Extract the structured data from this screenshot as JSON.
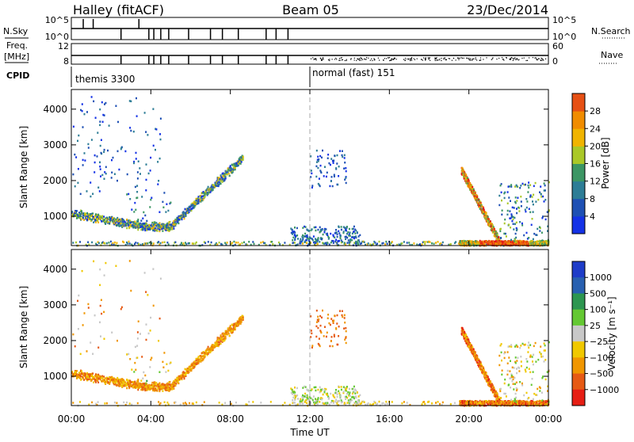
{
  "header": {
    "station": "Halley (fitACF)",
    "beam": "Beam 05",
    "date": "23/Dec/2014"
  },
  "top_panels": {
    "nsky_label": "N.Sky",
    "nsearch_label": "N.Search",
    "nsky_ticks": [
      "10^5",
      "10^0"
    ],
    "nsearch_ticks": [
      "10^5",
      "10^0"
    ],
    "freq_label_1": "Freq.",
    "freq_label_2": "[MHz]",
    "freq_ticks": [
      "12",
      "8"
    ],
    "nave_label": "Nave",
    "nave_ticks": [
      "60",
      "0"
    ],
    "cpid_label": "CPID",
    "cpid_modes": [
      {
        "name": "themis 3300",
        "start_hour": 0
      },
      {
        "name": "normal (fast) 151",
        "start_hour": 12
      }
    ]
  },
  "colors": {
    "power_scale": [
      "#1432e6",
      "#1e50b4",
      "#2d7d96",
      "#3c9664",
      "#aac828",
      "#f0b400",
      "#f08c00",
      "#e65014",
      "#e61414"
    ],
    "velocity_scale": [
      "#1e3cc8",
      "#2860b0",
      "#2d9650",
      "#64c832",
      "#c8c8c8",
      "#f0c800",
      "#f09600",
      "#e65a14",
      "#e61e14"
    ]
  },
  "chart_data": [
    {
      "type": "heatmap",
      "ylabel": "Slant Range [km]",
      "xlabel": "",
      "xlim": [
        0,
        24
      ],
      "ylim": [
        180,
        4550
      ],
      "y_ticks": [
        1000,
        2000,
        3000,
        4000
      ],
      "colorbar": {
        "label": "Power [dB]",
        "tick_labels": [
          "4",
          "8",
          "12",
          "16",
          "20",
          "24",
          "28"
        ],
        "range": [
          0,
          32
        ]
      },
      "features": [
        {
          "name": "near-range band",
          "t0": 0.0,
          "t1": 24.0,
          "r": "200-300",
          "value": "8-20"
        },
        {
          "name": "morning arc",
          "t0": 0.0,
          "t1": 8.5,
          "r": "1100 -> 700 -> 2500",
          "value": "4-20"
        },
        {
          "name": "evening streak",
          "t0": 19.6,
          "t1": 21.4,
          "r": "2300 -> 300",
          "value": "12-28"
        },
        {
          "name": "strong near-range",
          "t0": 20.0,
          "t1": 23.0,
          "r": "200-320",
          "value": "24-32"
        }
      ]
    },
    {
      "type": "heatmap",
      "ylabel": "Slant Range [km]",
      "xlabel": "Time UT",
      "x_tick_labels": [
        "00:00",
        "04:00",
        "08:00",
        "12:00",
        "16:00",
        "20:00",
        "00:00"
      ],
      "xlim": [
        0,
        24
      ],
      "ylim": [
        180,
        4550
      ],
      "y_ticks": [
        1000,
        2000,
        3000,
        4000
      ],
      "colorbar": {
        "label": "Velocity [m s⁻¹]",
        "tick_labels": [
          "1000",
          "500",
          "100",
          "25",
          "−25",
          "−100",
          "−500",
          "−1000"
        ]
      },
      "features": [
        {
          "name": "morning arc",
          "t0": 0.0,
          "t1": 8.5,
          "r": "1100 -> 700 -> 2500",
          "value": "-25 to -500"
        },
        {
          "name": "midday band",
          "t0": 11.0,
          "t1": 14.0,
          "r": "300-600",
          "value": "-25 to 25"
        },
        {
          "name": "evening streak",
          "t0": 19.6,
          "t1": 21.4,
          "r": "2300 -> 300",
          "value": "-100 to -1000"
        }
      ]
    }
  ]
}
